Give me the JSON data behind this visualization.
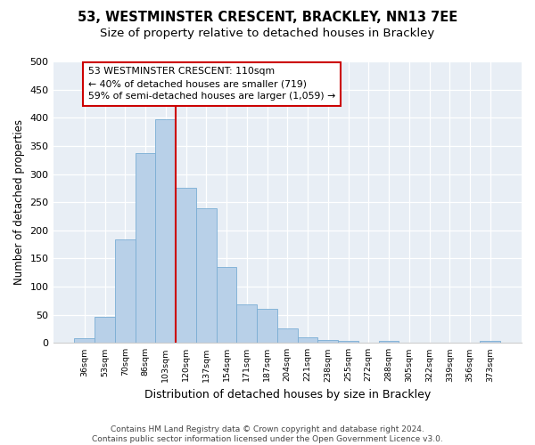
{
  "title1": "53, WESTMINSTER CRESCENT, BRACKLEY, NN13 7EE",
  "title2": "Size of property relative to detached houses in Brackley",
  "xlabel": "Distribution of detached houses by size in Brackley",
  "ylabel": "Number of detached properties",
  "categories": [
    "36sqm",
    "53sqm",
    "70sqm",
    "86sqm",
    "103sqm",
    "120sqm",
    "137sqm",
    "154sqm",
    "171sqm",
    "187sqm",
    "204sqm",
    "221sqm",
    "238sqm",
    "255sqm",
    "272sqm",
    "288sqm",
    "305sqm",
    "322sqm",
    "339sqm",
    "356sqm",
    "373sqm"
  ],
  "values": [
    8,
    46,
    184,
    337,
    398,
    275,
    239,
    135,
    68,
    61,
    25,
    10,
    5,
    3,
    0,
    3,
    0,
    0,
    0,
    0,
    3
  ],
  "bar_color": "#b8d0e8",
  "bar_edge_color": "#7aadd4",
  "vline_color": "#cc0000",
  "annotation_text": "53 WESTMINSTER CRESCENT: 110sqm\n← 40% of detached houses are smaller (719)\n59% of semi-detached houses are larger (1,059) →",
  "annotation_box_color": "#ffffff",
  "annotation_box_edge": "#cc0000",
  "ylim": [
    0,
    500
  ],
  "yticks": [
    0,
    50,
    100,
    150,
    200,
    250,
    300,
    350,
    400,
    450,
    500
  ],
  "footer": "Contains HM Land Registry data © Crown copyright and database right 2024.\nContains public sector information licensed under the Open Government Licence v3.0.",
  "bg_color": "#e8eef5",
  "title1_fontsize": 10.5,
  "title2_fontsize": 9.5,
  "xlabel_fontsize": 9,
  "ylabel_fontsize": 8.5,
  "footer_fontsize": 6.5
}
